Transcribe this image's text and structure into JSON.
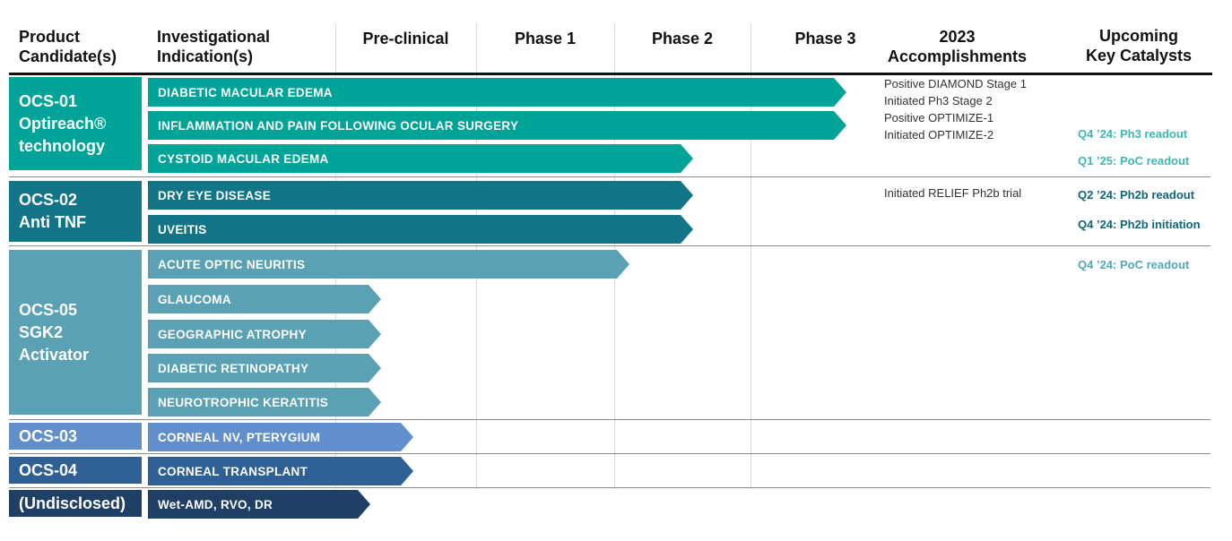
{
  "headers": {
    "product_line1": "Product",
    "product_line2": "Candidate(s)",
    "indication_line1": "Investigational",
    "indication_line2": "Indication(s)",
    "preclinical": "Pre-clinical",
    "phase1": "Phase 1",
    "phase2": "Phase 2",
    "phase3": "Phase 3",
    "accomplishments_line1": "2023",
    "accomplishments_line2": "Accomplishments",
    "catalysts_line1": "Upcoming",
    "catalysts_line2": "Key Catalysts"
  },
  "candidates": [
    {
      "lines": [
        "OCS-01",
        "Optireach®",
        "technology"
      ],
      "color": "#00a398"
    },
    {
      "lines": [
        "OCS-02",
        "Anti TNF"
      ],
      "color": "#127587"
    },
    {
      "lines": [
        "OCS-05",
        "SGK2",
        "Activator"
      ],
      "color": "#5aa1b3"
    },
    {
      "lines": [
        "OCS-03"
      ],
      "color": "#608fcc"
    },
    {
      "lines": [
        "OCS-04"
      ],
      "color": "#2e5f95"
    },
    {
      "lines": [
        "(Undisclosed)"
      ],
      "color": "#1f3f64"
    }
  ],
  "chart_data": {
    "type": "bar",
    "stages": [
      "Pre-clinical",
      "Phase 1",
      "Phase 2",
      "Phase 3"
    ],
    "programs": [
      {
        "candidate": "OCS-01",
        "indication": "DIABETIC MACULAR EDEMA",
        "stage": "Phase 3"
      },
      {
        "candidate": "OCS-01",
        "indication": "INFLAMMATION AND PAIN FOLLOWING OCULAR SURGERY",
        "stage": "Phase 3"
      },
      {
        "candidate": "OCS-01",
        "indication": "CYSTOID MACULAR EDEMA",
        "stage": "Phase 2"
      },
      {
        "candidate": "OCS-02",
        "indication": "DRY EYE DISEASE",
        "stage": "Phase 2"
      },
      {
        "candidate": "OCS-02",
        "indication": "UVEITIS",
        "stage": "Phase 2"
      },
      {
        "candidate": "OCS-05",
        "indication": "ACUTE OPTIC NEURITIS",
        "stage": "Phase 2"
      },
      {
        "candidate": "OCS-05",
        "indication": "GLAUCOMA",
        "stage": "Pre-clinical"
      },
      {
        "candidate": "OCS-05",
        "indication": "GEOGRAPHIC ATROPHY",
        "stage": "Pre-clinical"
      },
      {
        "candidate": "OCS-05",
        "indication": "DIABETIC RETINOPATHY",
        "stage": "Pre-clinical"
      },
      {
        "candidate": "OCS-05",
        "indication": "NEUROTROPHIC KERATITIS",
        "stage": "Pre-clinical"
      },
      {
        "candidate": "OCS-03",
        "indication": "CORNEAL NV, PTERYGIUM",
        "stage": "Pre-clinical"
      },
      {
        "candidate": "OCS-04",
        "indication": "CORNEAL TRANSPLANT",
        "stage": "Pre-clinical"
      },
      {
        "candidate": "(Undisclosed)",
        "indication": "Wet-AMD, RVO, DR",
        "stage": "Pre-clinical"
      }
    ]
  },
  "accomplishments": {
    "ocs01": [
      "Positive DIAMOND Stage 1",
      "Initiated Ph3 Stage 2",
      "Positive OPTIMIZE-1",
      "Initiated OPTIMIZE-2"
    ],
    "ocs02": [
      "Initiated RELIEF Ph2b trial"
    ]
  },
  "catalysts": [
    {
      "text": "Q4 ’24: Ph3 readout",
      "tone": "light"
    },
    {
      "text": "Q1 ’25: PoC readout",
      "tone": "light"
    },
    {
      "text": "Q2 ’24: Ph2b readout",
      "tone": "dark"
    },
    {
      "text": "Q4 ’24: Ph2b initiation",
      "tone": "dark"
    },
    {
      "text": "Q4 ’24: PoC readout",
      "tone": "mid"
    }
  ]
}
